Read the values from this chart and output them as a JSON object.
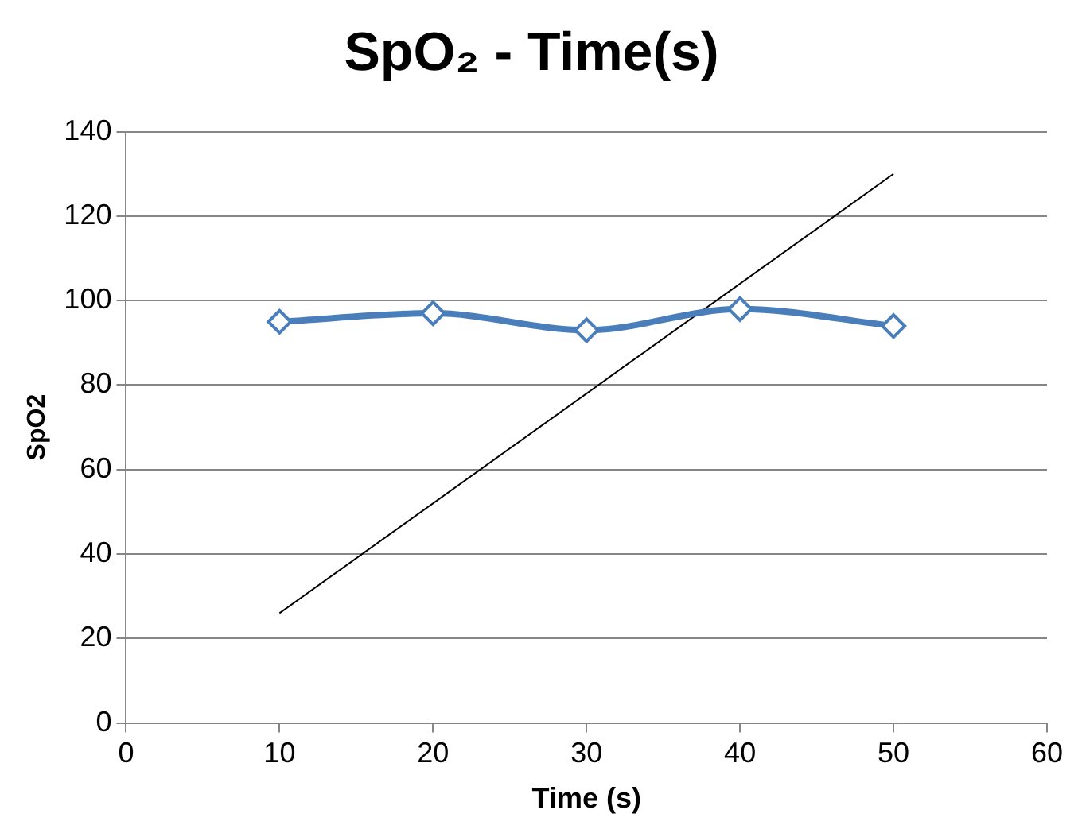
{
  "chart_data": {
    "type": "line",
    "title": "SpO₂ - Time(s)",
    "xlabel": "Time (s)",
    "ylabel": "SpO2",
    "x": [
      10,
      20,
      30,
      40,
      50
    ],
    "series": [
      {
        "color": "#4a7ebb",
        "values": [
          95,
          97,
          93,
          98,
          94
        ],
        "marker": "diamond"
      },
      {
        "color": "#000000",
        "x": [
          10,
          50
        ],
        "values": [
          26,
          130
        ],
        "marker": "none"
      }
    ],
    "xlim": [
      0,
      60
    ],
    "xticks": [
      0,
      10,
      20,
      30,
      40,
      50,
      60
    ],
    "ylim": [
      0,
      140
    ],
    "yticks": [
      0,
      20,
      40,
      60,
      80,
      100,
      120,
      140
    ],
    "grid": "y",
    "legend": false
  }
}
